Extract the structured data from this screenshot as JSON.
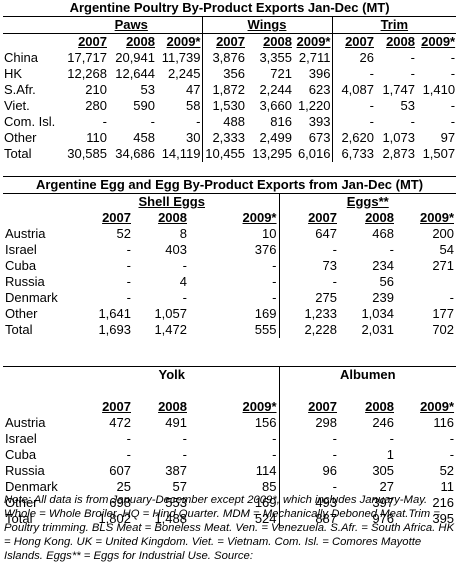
{
  "poultry": {
    "title": "Argentine Poultry By-Product Exports Jan-Dec (MT)",
    "groups": [
      "Paws",
      "Wings",
      "Trim"
    ],
    "years": [
      "2007",
      "2008",
      "2009*"
    ],
    "rows": [
      {
        "label": "China",
        "values": [
          "17,717",
          "20,941",
          "11,739",
          "3,876",
          "3,355",
          "2,711",
          "26",
          "-",
          "-"
        ]
      },
      {
        "label": "HK",
        "values": [
          "12,268",
          "12,644",
          "2,245",
          "356",
          "721",
          "396",
          "-",
          "-",
          "-"
        ]
      },
      {
        "label": "S.Afr.",
        "values": [
          "210",
          "53",
          "47",
          "1,872",
          "2,244",
          "623",
          "4,087",
          "1,747",
          "1,410"
        ]
      },
      {
        "label": "Viet.",
        "values": [
          "280",
          "590",
          "58",
          "1,530",
          "3,660",
          "1,220",
          "-",
          "53",
          "-"
        ]
      },
      {
        "label": "Com. Isl.",
        "values": [
          "-",
          "-",
          "-",
          "488",
          "816",
          "393",
          "-",
          "-",
          "-"
        ]
      },
      {
        "label": "Other",
        "values": [
          "110",
          "458",
          "30",
          "2,333",
          "2,499",
          "673",
          "2,620",
          "1,073",
          "97"
        ]
      },
      {
        "label": "Total",
        "values": [
          "30,585",
          "34,686",
          "14,119",
          "10,455",
          "13,295",
          "6,016",
          "6,733",
          "2,873",
          "1,507"
        ]
      }
    ]
  },
  "egg": {
    "title": "Argentine Egg and Egg By-Product Exports from Jan-Dec (MT)",
    "groups_top": [
      "Shell Eggs",
      "Eggs**"
    ],
    "groups_bottom": [
      "Yolk",
      "Albumen"
    ],
    "years": [
      "2007",
      "2008",
      "2009*"
    ],
    "top_rows": [
      {
        "label": "Austria",
        "values": [
          "52",
          "8",
          "10",
          "647",
          "468",
          "200"
        ]
      },
      {
        "label": "Israel",
        "values": [
          "-",
          "403",
          "376",
          "-",
          "-",
          "54"
        ]
      },
      {
        "label": "Cuba",
        "values": [
          "-",
          "-",
          "-",
          "73",
          "234",
          "271"
        ]
      },
      {
        "label": "Russia",
        "values": [
          "-",
          "4",
          "-",
          "-",
          "56",
          ""
        ]
      },
      {
        "label": "Denmark",
        "values": [
          "-",
          "-",
          "-",
          "275",
          "239",
          "-"
        ]
      },
      {
        "label": "Other",
        "values": [
          "1,641",
          "1,057",
          "169",
          "1,233",
          "1,034",
          "177"
        ]
      },
      {
        "label": "Total",
        "values": [
          "1,693",
          "1,472",
          "555",
          "2,228",
          "2,031",
          "702"
        ]
      }
    ],
    "bottom_rows": [
      {
        "label": "Austria",
        "values": [
          "472",
          "491",
          "156",
          "298",
          "246",
          "116"
        ]
      },
      {
        "label": "Israel",
        "values": [
          "-",
          "-",
          "-",
          "-",
          "-",
          "-"
        ]
      },
      {
        "label": "Cuba",
        "values": [
          "-",
          "-",
          "-",
          "-",
          "1",
          "-"
        ]
      },
      {
        "label": "Russia",
        "values": [
          "607",
          "387",
          "114",
          "96",
          "305",
          "52"
        ]
      },
      {
        "label": "Denmark",
        "values": [
          "25",
          "57",
          "85",
          "-",
          "27",
          "11"
        ]
      },
      {
        "label": "Other",
        "values": [
          "698",
          "553",
          "169",
          "493",
          "397",
          "216"
        ]
      },
      {
        "label": "Total",
        "values": [
          "1,802",
          "1,488",
          "524",
          "887",
          "976",
          "395"
        ]
      }
    ]
  },
  "note": "Note: All data is from January-December except 2009*, which includes January-May. Whole = Whole Broiler. HQ = Hind Quarter. MDM = Mechanically Deboned Meat.Trim = Poultry trimming. BLS Meat = Boneless Meat. Ven. = Venezuela. S.Afr. = South Africa. HK = Hong Kong. UK = United Kingdom. Viet. = Vietnam. Com. Isl. = Comores Mayotte Islands. Eggs** = Eggs for Industrial Use. Source:"
}
